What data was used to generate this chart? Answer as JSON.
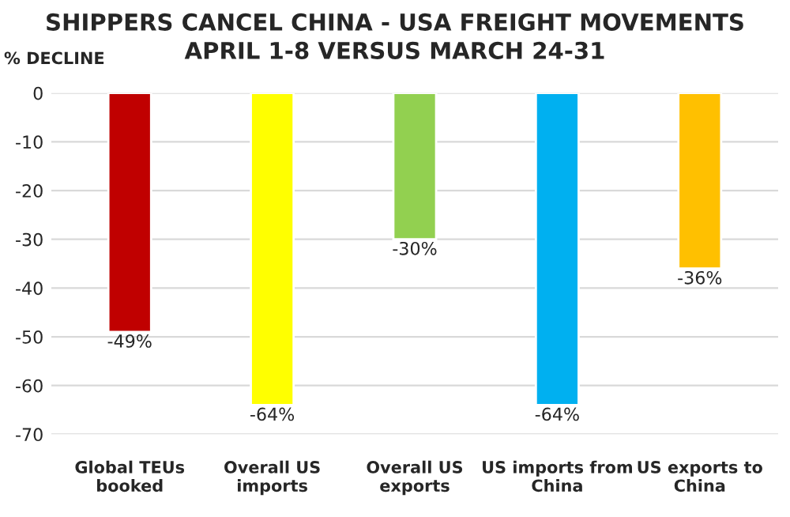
{
  "chart_data": {
    "type": "bar",
    "title": "SHIPPERS CANCEL CHINA - USA FREIGHT MOVEMENTS\nAPRIL 1-8 VERSUS MARCH 24-31",
    "ylabel": "% DECLINE",
    "categories": [
      "Global TEUs\nbooked",
      "Overall US\nimports",
      "Overall US\nexports",
      "US imports from\nChina",
      "US exports to\nChina"
    ],
    "values": [
      -49,
      -64,
      -30,
      -64,
      -36
    ],
    "colors": [
      "#c00000",
      "#ffff00",
      "#92d050",
      "#00b0f0",
      "#ffc000"
    ],
    "value_labels": [
      "-49%",
      "-64%",
      "-30%",
      "-64%",
      "-36%"
    ],
    "ylim": [
      -70,
      0
    ],
    "yticks": [
      -70,
      -60,
      -50,
      -40,
      -30,
      -20,
      -10,
      0
    ],
    "grid": "y",
    "legend": false
  }
}
